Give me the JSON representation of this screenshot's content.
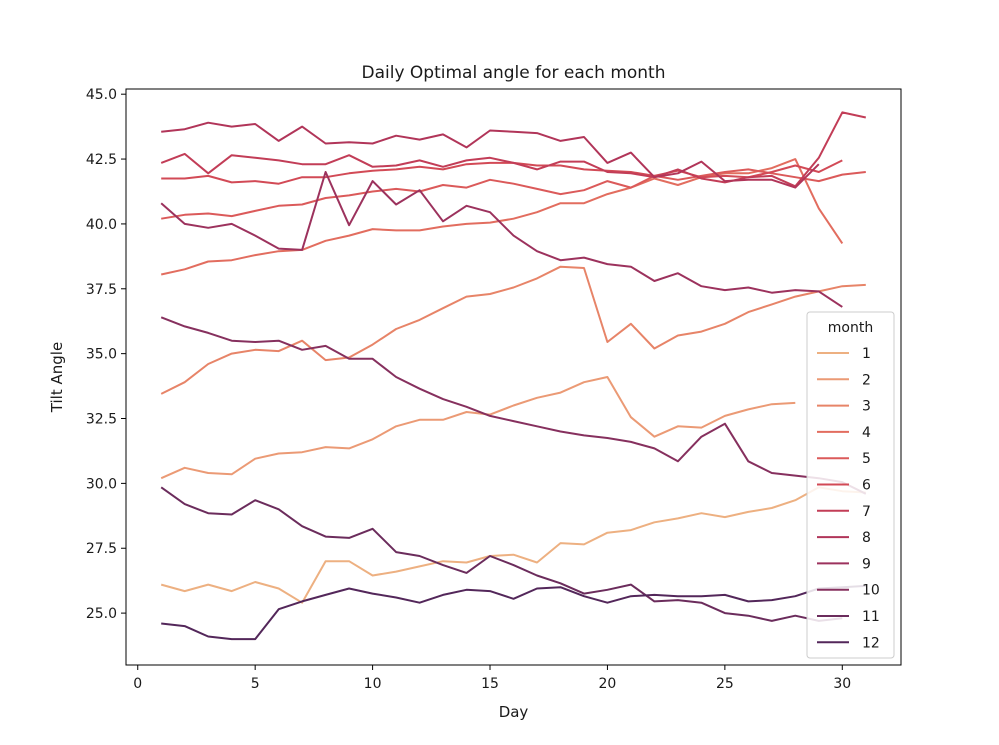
{
  "chart_data": {
    "type": "line",
    "title": "Daily Optimal angle for each month",
    "xlabel": "Day",
    "ylabel": "Tilt Angle",
    "xlim": [
      -0.5,
      32.5
    ],
    "ylim": [
      23.0,
      45.2
    ],
    "xticks": [
      0,
      5,
      10,
      15,
      20,
      25,
      30
    ],
    "xtick_labels": [
      "0",
      "5",
      "10",
      "15",
      "20",
      "25",
      "30"
    ],
    "yticks": [
      25.0,
      27.5,
      30.0,
      32.5,
      35.0,
      37.5,
      40.0,
      42.5,
      45.0
    ],
    "ytick_labels": [
      "25.0",
      "27.5",
      "30.0",
      "32.5",
      "35.0",
      "37.5",
      "40.0",
      "42.5",
      "45.0"
    ],
    "grid": false,
    "legend": {
      "title": "month",
      "placement": "lower-right"
    },
    "series": [
      {
        "name": "1",
        "color": "#edb081",
        "values": [
          26.1,
          25.85,
          26.1,
          25.85,
          26.2,
          25.95,
          25.4,
          27.0,
          27.0,
          26.45,
          26.6,
          26.8,
          27.0,
          26.95,
          27.2,
          27.25,
          26.95,
          27.7,
          27.65,
          28.1,
          28.2,
          28.5,
          28.65,
          28.85,
          28.7,
          28.9,
          29.05,
          29.35,
          29.85,
          29.7,
          29.65
        ]
      },
      {
        "name": "2",
        "color": "#eb9a75",
        "values": [
          30.2,
          30.6,
          30.4,
          30.35,
          30.95,
          31.15,
          31.2,
          31.4,
          31.35,
          31.7,
          32.2,
          32.45,
          32.45,
          32.75,
          32.65,
          33.0,
          33.3,
          33.5,
          33.9,
          34.1,
          32.55,
          31.8,
          32.2,
          32.15,
          32.6,
          32.85,
          33.05,
          33.1
        ]
      },
      {
        "name": "3",
        "color": "#e78468",
        "values": [
          33.45,
          33.9,
          34.6,
          35.0,
          35.15,
          35.1,
          35.5,
          34.75,
          34.85,
          35.35,
          35.95,
          36.3,
          36.75,
          37.2,
          37.3,
          37.55,
          37.9,
          38.35,
          38.3,
          35.45,
          36.15,
          35.2,
          35.7,
          35.85,
          36.15,
          36.6,
          36.9,
          37.2,
          37.4,
          37.6,
          37.65
        ]
      },
      {
        "name": "4",
        "color": "#e26d5f",
        "values": [
          38.05,
          38.25,
          38.55,
          38.6,
          38.8,
          38.95,
          39.0,
          39.35,
          39.55,
          39.8,
          39.75,
          39.75,
          39.9,
          40.0,
          40.05,
          40.2,
          40.45,
          40.8,
          40.8,
          41.15,
          41.4,
          41.75,
          41.5,
          41.8,
          41.95,
          41.95,
          42.15,
          42.5,
          40.6,
          39.25
        ]
      },
      {
        "name": "5",
        "color": "#db5a5a",
        "values": [
          40.2,
          40.35,
          40.4,
          40.3,
          40.5,
          40.7,
          40.75,
          41.0,
          41.1,
          41.25,
          41.35,
          41.25,
          41.5,
          41.4,
          41.7,
          41.55,
          41.35,
          41.15,
          41.3,
          41.65,
          41.4,
          41.85,
          41.7,
          41.85,
          42.0,
          42.1,
          41.95,
          41.8,
          41.65,
          41.9,
          42.0
        ]
      },
      {
        "name": "6",
        "color": "#d24a56",
        "values": [
          41.75,
          41.75,
          41.85,
          41.6,
          41.65,
          41.55,
          41.8,
          41.8,
          41.95,
          42.05,
          42.1,
          42.2,
          42.1,
          42.3,
          42.35,
          42.35,
          42.25,
          42.25,
          42.1,
          42.05,
          42.0,
          41.85,
          42.05,
          41.8,
          41.85,
          41.8,
          42.0,
          42.25,
          42.0,
          42.45
        ]
      },
      {
        "name": "7",
        "color": "#c23d57",
        "values": [
          42.35,
          42.7,
          41.95,
          42.65,
          42.55,
          42.45,
          42.3,
          42.3,
          42.65,
          42.2,
          42.25,
          42.45,
          42.2,
          42.45,
          42.55,
          42.35,
          42.1,
          42.4,
          42.4,
          42.0,
          41.95,
          41.8,
          42.1,
          41.75,
          41.6,
          41.8,
          41.85,
          41.45,
          42.55,
          44.3,
          44.1
        ]
      },
      {
        "name": "8",
        "color": "#b13559",
        "values": [
          43.55,
          43.65,
          43.9,
          43.75,
          43.85,
          43.2,
          43.75,
          43.1,
          43.15,
          43.1,
          43.4,
          43.25,
          43.45,
          42.95,
          43.6,
          43.55,
          43.5,
          43.2,
          43.35,
          42.35,
          42.75,
          41.8,
          41.95,
          42.4,
          41.65,
          41.7,
          41.7,
          41.4,
          42.3
        ]
      },
      {
        "name": "9",
        "color": "#9c325d",
        "values": [
          40.8,
          40.0,
          39.85,
          40.0,
          39.55,
          39.05,
          39.0,
          42.0,
          39.95,
          41.65,
          40.75,
          41.3,
          40.1,
          40.7,
          40.45,
          39.55,
          38.95,
          38.6,
          38.7,
          38.45,
          38.35,
          37.8,
          38.1,
          37.6,
          37.45,
          37.55,
          37.35,
          37.45,
          37.4,
          36.8
        ]
      },
      {
        "name": "10",
        "color": "#86305e",
        "values": [
          36.4,
          36.05,
          35.8,
          35.5,
          35.45,
          35.5,
          35.15,
          35.3,
          34.8,
          34.8,
          34.1,
          33.65,
          33.25,
          32.95,
          32.6,
          32.4,
          32.2,
          32.0,
          31.85,
          31.75,
          31.6,
          31.35,
          30.85,
          31.8,
          32.3,
          30.85,
          30.4,
          30.3,
          30.2,
          30.05,
          29.6
        ]
      },
      {
        "name": "11",
        "color": "#6b2c5c",
        "values": [
          29.85,
          29.2,
          28.85,
          28.8,
          29.35,
          29.0,
          28.35,
          27.95,
          27.9,
          28.25,
          27.35,
          27.2,
          26.85,
          26.55,
          27.2,
          26.85,
          26.45,
          26.15,
          25.75,
          25.9,
          26.1,
          25.45,
          25.5,
          25.4,
          25.0,
          24.9,
          24.7,
          24.9,
          24.7,
          24.8
        ]
      },
      {
        "name": "12",
        "color": "#53275a",
        "values": [
          24.6,
          24.5,
          24.1,
          24.0,
          24.0,
          25.15,
          25.45,
          25.7,
          25.95,
          25.75,
          25.6,
          25.4,
          25.7,
          25.9,
          25.85,
          25.55,
          25.95,
          26.0,
          25.65,
          25.4,
          25.65,
          25.7,
          25.65,
          25.65,
          25.7,
          25.45,
          25.5,
          25.65,
          25.95,
          26.0,
          26.05
        ]
      }
    ]
  }
}
